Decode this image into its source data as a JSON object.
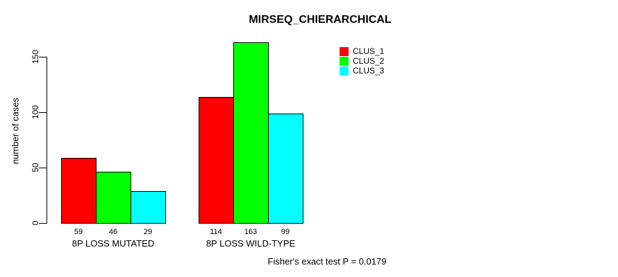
{
  "chart_data": {
    "type": "bar",
    "title": "MIRSEQ_CHIERARCHICAL",
    "xlabel": "",
    "ylabel": "number of cases",
    "categories": [
      "8P LOSS MUTATED",
      "8P LOSS WILD-TYPE"
    ],
    "series": [
      {
        "name": "CLUS_1",
        "color": "#ff0000",
        "values": [
          59,
          114
        ]
      },
      {
        "name": "CLUS_2",
        "color": "#00ff00",
        "values": [
          46,
          163
        ]
      },
      {
        "name": "CLUS_3",
        "color": "#00ffff",
        "values": [
          29,
          99
        ]
      }
    ],
    "yticks": [
      0,
      50,
      100,
      150
    ],
    "ylim": [
      0,
      163
    ],
    "grid": false,
    "bar_value_labels": true,
    "legend_position": "topright",
    "annotation": "Fisher's exact test P = 0.0179"
  },
  "colors": {
    "background": "#ffffff",
    "axis": "#000000",
    "text": "#000000",
    "bar_border": "#000000"
  }
}
